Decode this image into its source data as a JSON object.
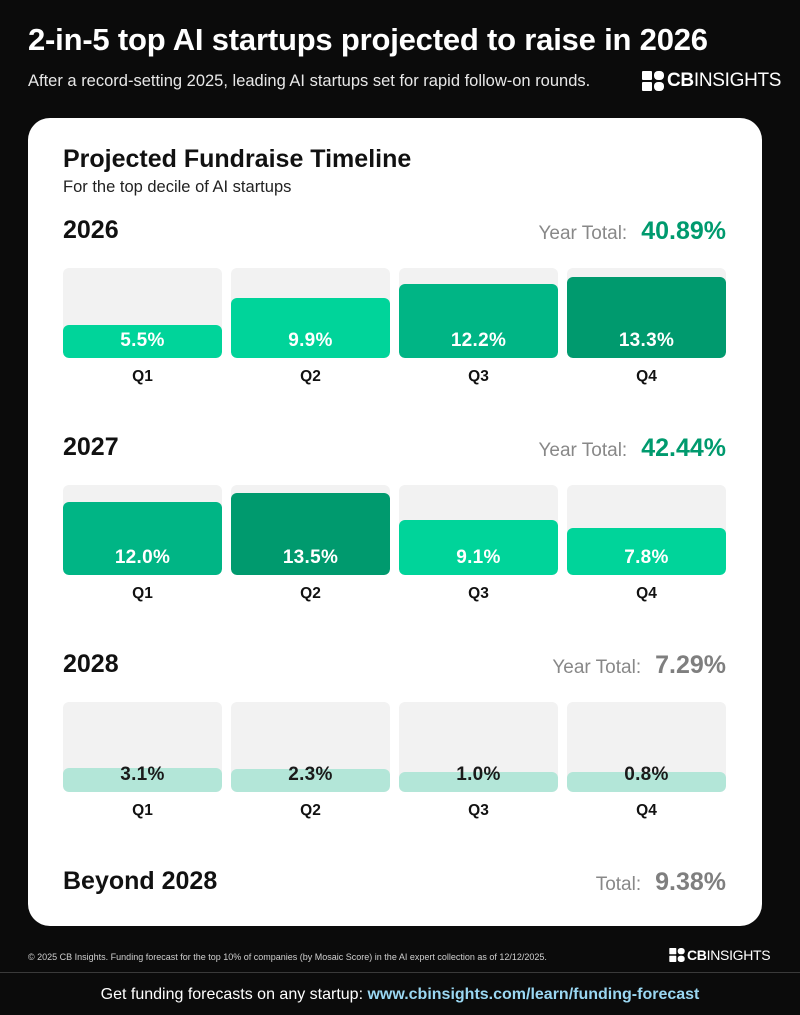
{
  "header": {
    "headline": "2-in-5 top AI startups projected to raise in 2026",
    "subhead": "After a record-setting 2025, leading AI startups set for rapid follow-on rounds.",
    "brand_bold": "CB",
    "brand_rest": "INSIGHTS"
  },
  "colors": {
    "light": "#00d49a",
    "mid": "#00b585",
    "dark": "#009a6e",
    "pale": "#b3e6d8",
    "grey_total": "#7f7f7f",
    "slot_bg": "#f2f2f2"
  },
  "chart_data": {
    "type": "bar",
    "title": "Projected Fundraise Timeline",
    "subtitle": "For the top decile of AI startups",
    "categories": [
      "Q1",
      "Q2",
      "Q3",
      "Q4"
    ],
    "unit": "%",
    "groups": [
      {
        "year": "2026",
        "total_label": "Year Total:",
        "total": "40.89%",
        "values": [
          5.5,
          9.9,
          12.2,
          13.3
        ],
        "labels": [
          "5.5%",
          "9.9%",
          "12.2%",
          "13.3%"
        ]
      },
      {
        "year": "2027",
        "total_label": "Year Total:",
        "total": "42.44%",
        "values": [
          12.0,
          13.5,
          9.1,
          7.8
        ],
        "labels": [
          "12.0%",
          "13.5%",
          "9.1%",
          "7.8%"
        ]
      },
      {
        "year": "2028",
        "total_label": "Year Total:",
        "total": "7.29%",
        "values": [
          3.1,
          2.3,
          1.0,
          0.8
        ],
        "labels": [
          "3.1%",
          "2.3%",
          "1.0%",
          "0.8%"
        ]
      }
    ],
    "beyond": {
      "label": "Beyond 2028",
      "total_label": "Total:",
      "total": "9.38%"
    }
  },
  "footer": {
    "disclaimer": "© 2025 CB Insights. Funding forecast for the top 10% of companies (by Mosaic Score) in the AI expert collection as of 12/12/2025.",
    "cta_text": "Get funding forecasts on any startup: ",
    "cta_link": "www.cbinsights.com/learn/funding-forecast"
  }
}
